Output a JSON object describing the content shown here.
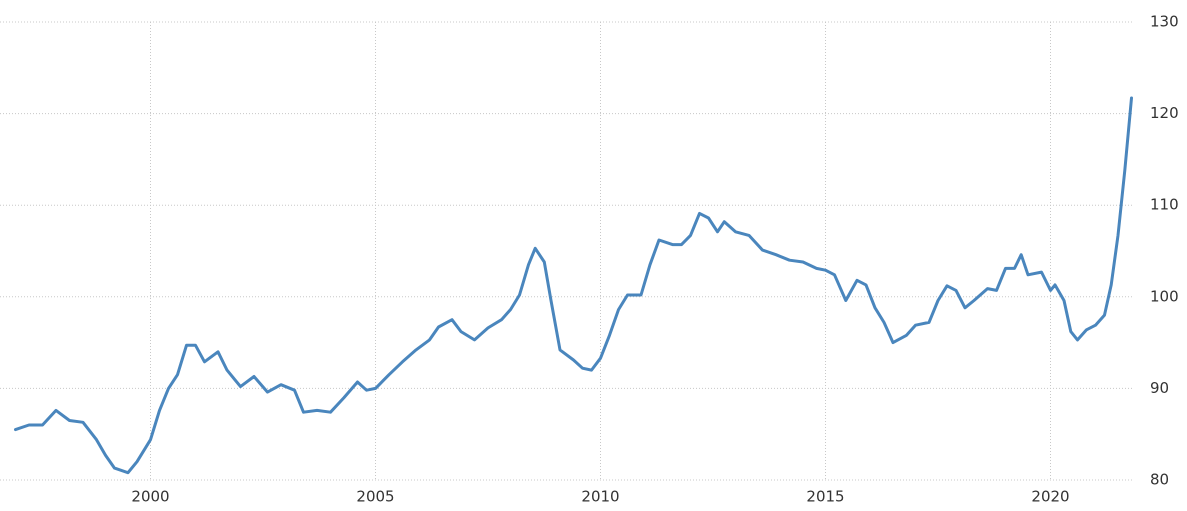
{
  "chart_data": {
    "type": "line",
    "color": "#4a86bd",
    "grid": true,
    "x": [
      1997.0,
      1997.3,
      1997.6,
      1997.9,
      1998.2,
      1998.5,
      1998.8,
      1999.0,
      1999.2,
      1999.5,
      1999.7,
      2000.0,
      2000.2,
      2000.4,
      2000.6,
      2000.8,
      2001.0,
      2001.2,
      2001.5,
      2001.7,
      2002.0,
      2002.3,
      2002.6,
      2002.9,
      2003.2,
      2003.4,
      2003.7,
      2004.0,
      2004.3,
      2004.6,
      2004.8,
      2005.0,
      2005.3,
      2005.6,
      2005.9,
      2006.2,
      2006.4,
      2006.7,
      2006.9,
      2007.2,
      2007.5,
      2007.8,
      2008.0,
      2008.2,
      2008.4,
      2008.55,
      2008.75,
      2008.9,
      2009.1,
      2009.4,
      2009.6,
      2009.8,
      2010.0,
      2010.2,
      2010.4,
      2010.6,
      2010.9,
      2011.1,
      2011.3,
      2011.6,
      2011.8,
      2012.0,
      2012.2,
      2012.4,
      2012.6,
      2012.75,
      2013.0,
      2013.3,
      2013.6,
      2013.9,
      2014.2,
      2014.5,
      2014.8,
      2015.0,
      2015.2,
      2015.45,
      2015.7,
      2015.9,
      2016.1,
      2016.3,
      2016.5,
      2016.8,
      2017.0,
      2017.3,
      2017.5,
      2017.7,
      2017.9,
      2018.1,
      2018.3,
      2018.6,
      2018.8,
      2019.0,
      2019.2,
      2019.35,
      2019.5,
      2019.8,
      2020.0,
      2020.1,
      2020.3,
      2020.45,
      2020.6,
      2020.8,
      2021.0,
      2021.2,
      2021.35,
      2021.5,
      2021.65,
      2021.8
    ],
    "values": [
      85.5,
      86.0,
      86.0,
      87.6,
      86.5,
      86.3,
      84.4,
      82.7,
      81.3,
      80.8,
      82.0,
      84.4,
      87.6,
      90.0,
      91.5,
      94.7,
      94.7,
      92.9,
      94.0,
      92.0,
      90.2,
      91.3,
      89.6,
      90.4,
      89.8,
      87.4,
      87.6,
      87.4,
      89.0,
      90.7,
      89.8,
      90.0,
      91.5,
      92.9,
      94.2,
      95.3,
      96.7,
      97.5,
      96.2,
      95.3,
      96.6,
      97.5,
      98.6,
      100.2,
      103.5,
      105.3,
      103.8,
      99.6,
      94.2,
      93.1,
      92.2,
      92.0,
      93.3,
      95.8,
      98.6,
      100.2,
      100.2,
      103.5,
      106.2,
      105.7,
      105.7,
      106.7,
      109.1,
      108.6,
      107.1,
      108.2,
      107.1,
      106.7,
      105.1,
      104.6,
      104.0,
      103.8,
      103.1,
      102.9,
      102.4,
      99.6,
      101.8,
      101.3,
      98.8,
      97.2,
      95.0,
      95.8,
      96.9,
      97.2,
      99.6,
      101.2,
      100.7,
      98.8,
      99.6,
      100.9,
      100.7,
      103.1,
      103.1,
      104.6,
      102.4,
      102.7,
      100.7,
      101.3,
      99.6,
      96.2,
      95.3,
      96.4,
      96.9,
      98.0,
      101.3,
      106.7,
      113.8,
      121.7
    ],
    "xlim": [
      1996.7,
      2022.1
    ],
    "xticks": [
      2000,
      2005,
      2010,
      2015,
      2020
    ],
    "ylim": [
      80,
      130
    ],
    "yticks": [
      80,
      90,
      100,
      110,
      120,
      130
    ]
  }
}
